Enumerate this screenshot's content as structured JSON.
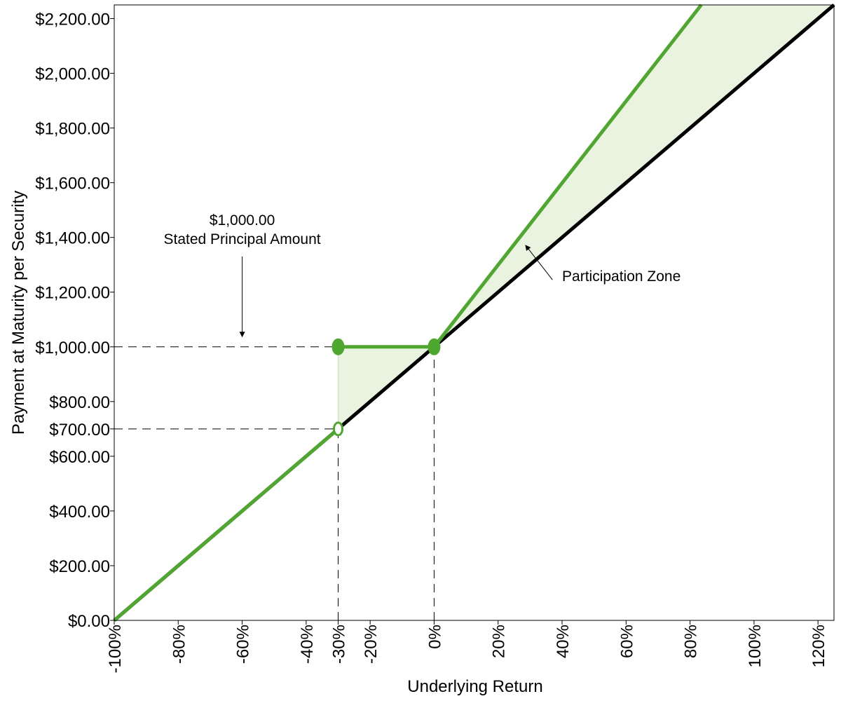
{
  "chart_data": {
    "type": "line",
    "xlabel": "Underlying Return",
    "ylabel": "Payment at Maturity per Security",
    "xlim": [
      -100,
      125
    ],
    "ylim": [
      0,
      2250
    ],
    "grid": false,
    "x_ticks": [
      {
        "value": -100,
        "label": "-100%"
      },
      {
        "value": -80,
        "label": "-80%"
      },
      {
        "value": -60,
        "label": "-60%"
      },
      {
        "value": -40,
        "label": "-40%"
      },
      {
        "value": -30,
        "label": "-30%"
      },
      {
        "value": -20,
        "label": "-20%"
      },
      {
        "value": 0,
        "label": "0%"
      },
      {
        "value": 20,
        "label": "20%"
      },
      {
        "value": 40,
        "label": "40%"
      },
      {
        "value": 60,
        "label": "60%"
      },
      {
        "value": 80,
        "label": "80%"
      },
      {
        "value": 100,
        "label": "100%"
      },
      {
        "value": 120,
        "label": "120%"
      }
    ],
    "y_ticks": [
      {
        "value": 0,
        "label": "$0.00"
      },
      {
        "value": 200,
        "label": "$200.00"
      },
      {
        "value": 400,
        "label": "$400.00"
      },
      {
        "value": 600,
        "label": "$600.00"
      },
      {
        "value": 700,
        "label": "$700.00"
      },
      {
        "value": 800,
        "label": "$800.00"
      },
      {
        "value": 1000,
        "label": "$1,000.00"
      },
      {
        "value": 1200,
        "label": "$1,200.00"
      },
      {
        "value": 1400,
        "label": "$1,400.00"
      },
      {
        "value": 1600,
        "label": "$1,600.00"
      },
      {
        "value": 1800,
        "label": "$1,800.00"
      },
      {
        "value": 2000,
        "label": "$2,000.00"
      },
      {
        "value": 2200,
        "label": "$2,200.00"
      }
    ],
    "series": [
      {
        "role": "underlying",
        "color": "#000000",
        "points": [
          [
            -100,
            0
          ],
          [
            125,
            2250
          ]
        ]
      },
      {
        "role": "security-below",
        "color": "#4ea72e",
        "points": [
          [
            -100,
            0
          ],
          [
            -30,
            700
          ]
        ]
      },
      {
        "role": "security-buffer",
        "color": "#4ea72e",
        "points": [
          [
            -30,
            1000
          ],
          [
            0,
            1000
          ]
        ]
      },
      {
        "role": "security-above",
        "color": "#4ea72e",
        "points": [
          [
            0,
            1000
          ],
          [
            83.5,
            2250
          ]
        ]
      }
    ],
    "markers": [
      {
        "x": -30,
        "y": 1000,
        "filled": true
      },
      {
        "x": 0,
        "y": 1000,
        "filled": true
      },
      {
        "x": -30,
        "y": 700,
        "filled": false
      }
    ],
    "reference_lines": [
      {
        "type": "h",
        "y": 1000,
        "from_x": -100,
        "to_x": -30
      },
      {
        "type": "h",
        "y": 700,
        "from_x": -100,
        "to_x": -30
      },
      {
        "type": "v",
        "x": -30,
        "from_y": 0,
        "to_y": 700
      },
      {
        "type": "v",
        "x": 0,
        "from_y": 0,
        "to_y": 1000
      }
    ],
    "shaded_regions": [
      {
        "color": "#e9f3e0",
        "points": [
          [
            -30,
            700
          ],
          [
            -30,
            1000
          ],
          [
            0,
            1000
          ]
        ]
      },
      {
        "color": "#e9f3e0",
        "points": [
          [
            0,
            1000
          ],
          [
            83.5,
            2250
          ],
          [
            125,
            2250
          ]
        ]
      }
    ],
    "annotations": [
      {
        "id": "principal",
        "lines": [
          "$1,000.00",
          "Stated Principal Amount"
        ],
        "x": -60,
        "y": 1410,
        "arrow_from": [
          -60,
          1330
        ],
        "arrow_to": [
          -60,
          1045
        ]
      },
      {
        "id": "participation",
        "text": "Participation Zone",
        "x": 40,
        "y": 1240,
        "arrow_from": [
          37,
          1245
        ],
        "arrow_to": [
          29,
          1365
        ]
      }
    ],
    "colors": {
      "accent": "#4ea72e",
      "fill": "#e9f3e0",
      "line": "#000000"
    }
  }
}
